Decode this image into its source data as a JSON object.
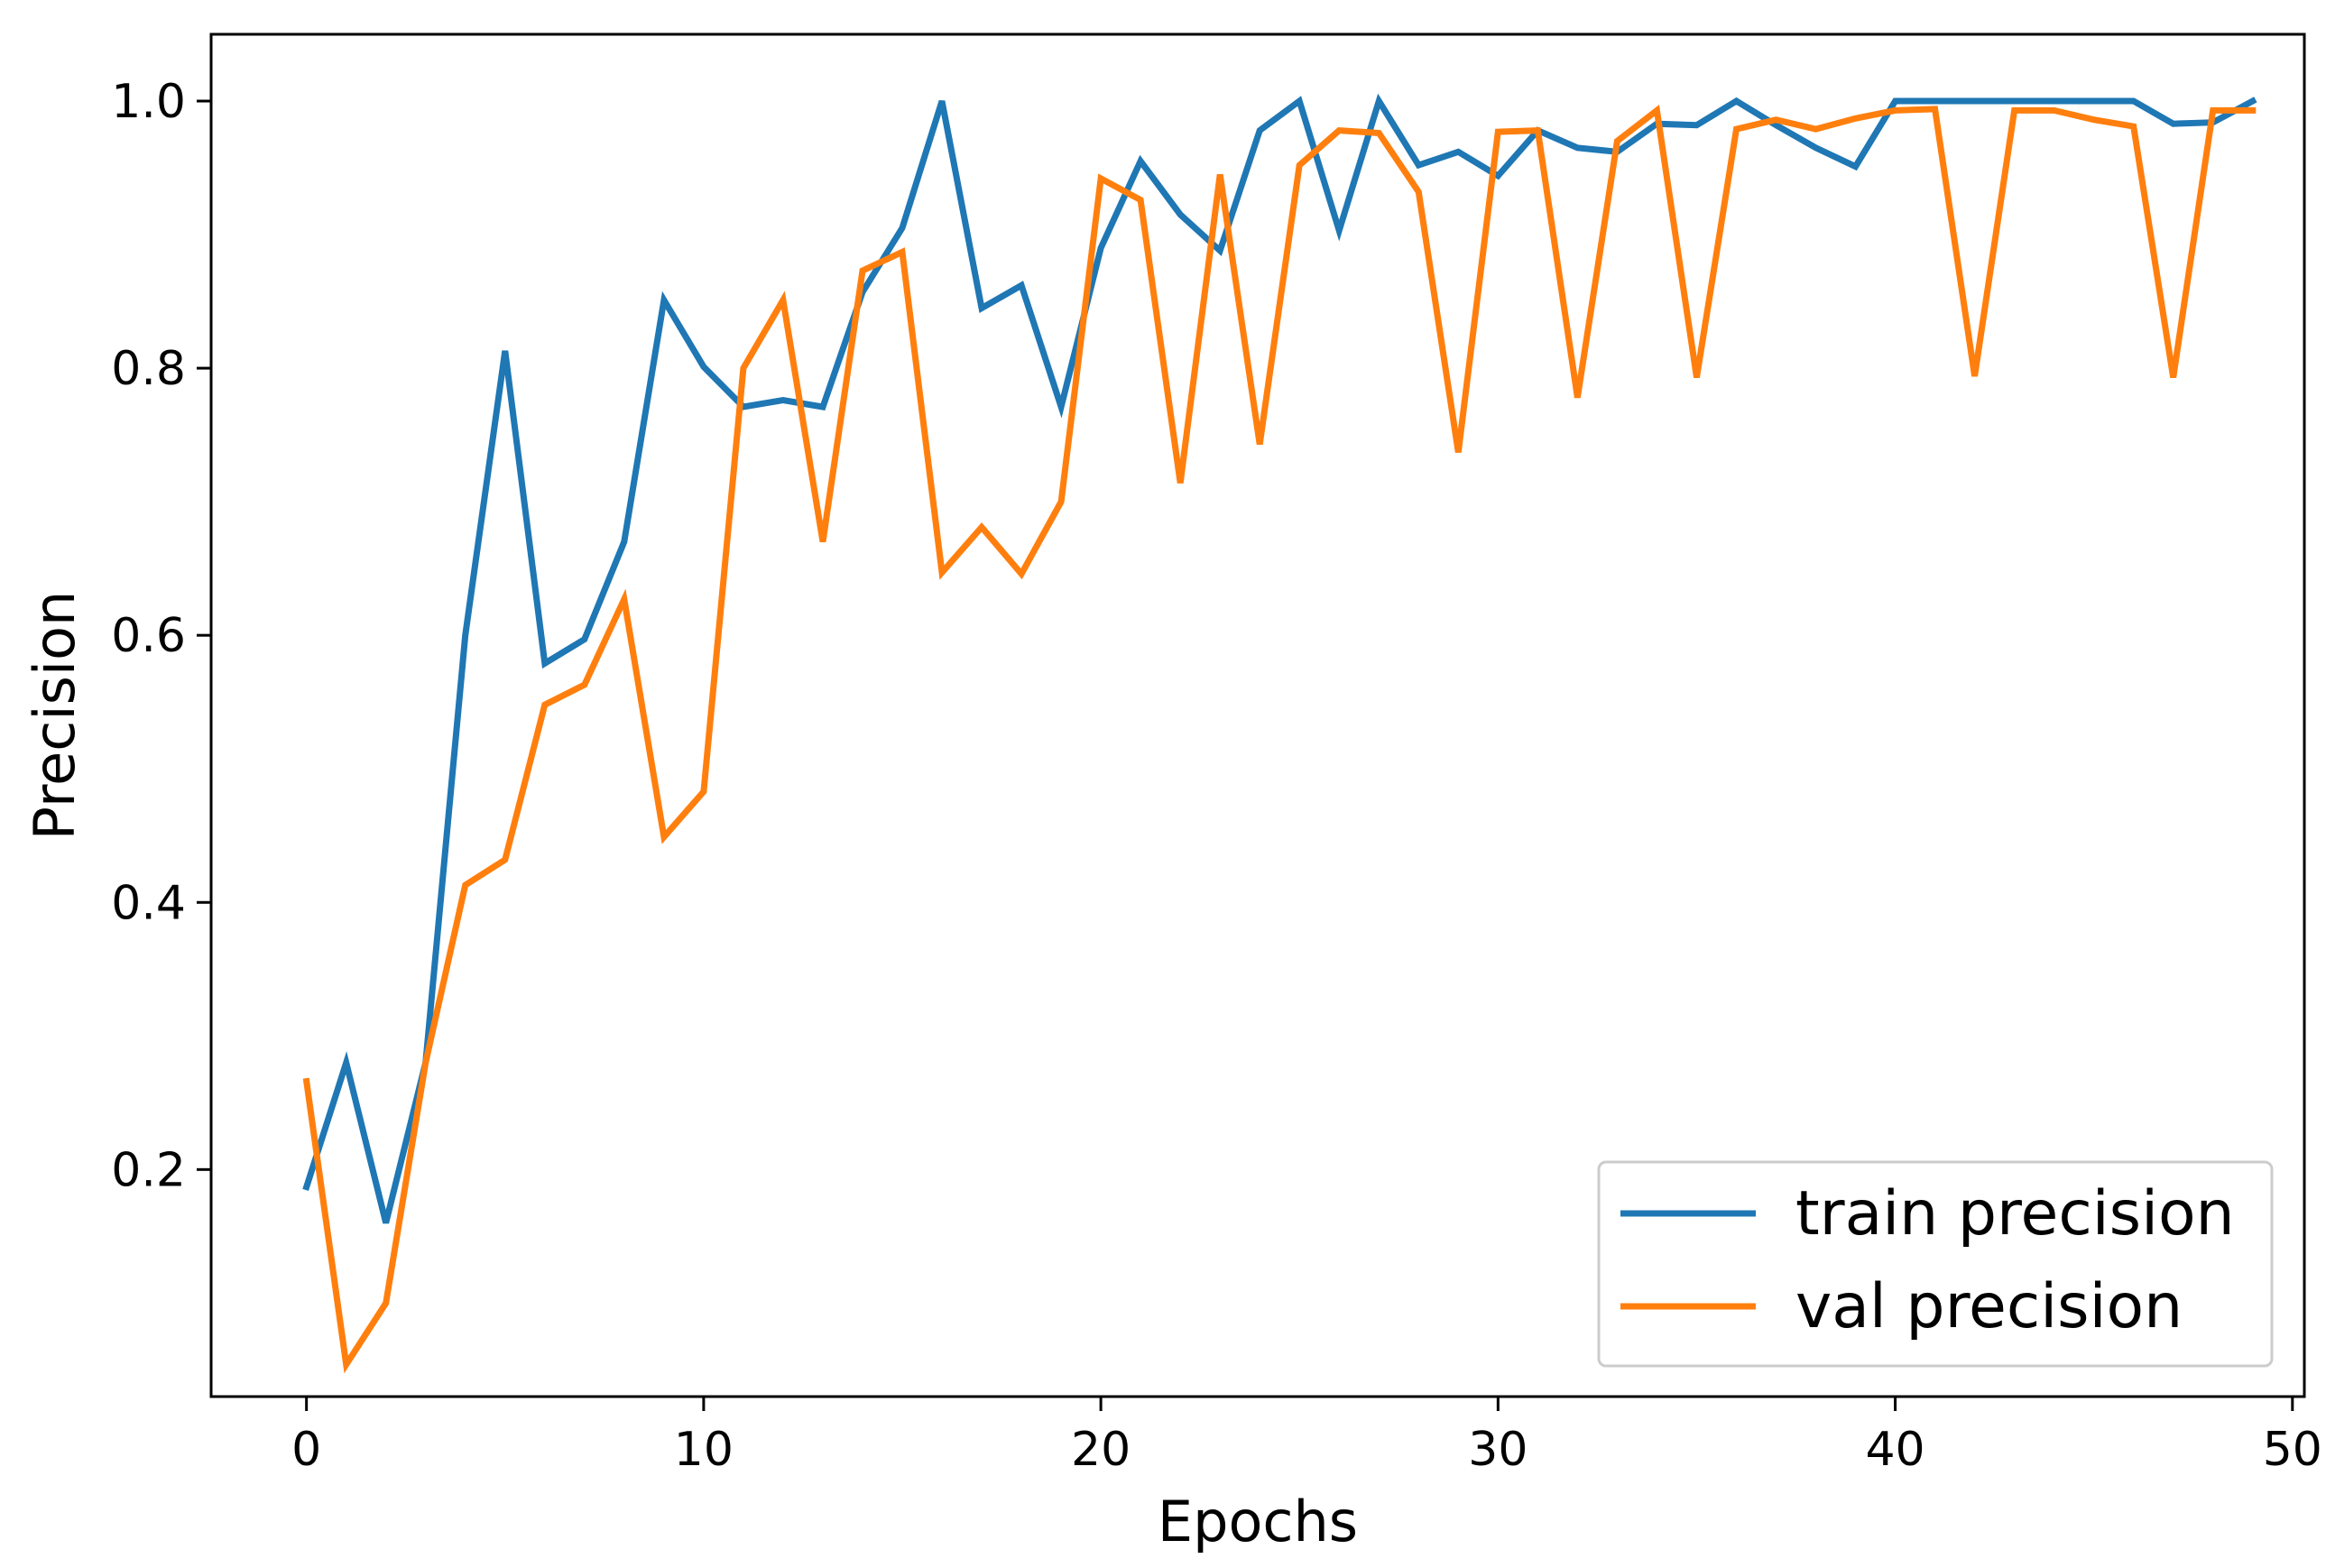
{
  "chart_data": {
    "type": "line",
    "xlabel": "Epochs",
    "ylabel": "Precision",
    "xlim": [
      -2.4,
      50.3
    ],
    "ylim": [
      0.03,
      1.05
    ],
    "x_ticks": [
      0,
      10,
      20,
      30,
      40,
      50
    ],
    "y_ticks": [
      0.2,
      0.4,
      0.6,
      0.8,
      1.0
    ],
    "x_tick_labels": [
      "0",
      "10",
      "20",
      "30",
      "40",
      "50"
    ],
    "y_tick_labels": [
      "0.2",
      "0.4",
      "0.6",
      "0.8",
      "1.0"
    ],
    "grid": false,
    "legend_position": "lower-right",
    "x": [
      0,
      1,
      2,
      3,
      4,
      5,
      6,
      7,
      8,
      9,
      10,
      11,
      12,
      13,
      14,
      15,
      16,
      17,
      18,
      19,
      20,
      21,
      22,
      23,
      24,
      25,
      26,
      27,
      28,
      29,
      30,
      31,
      32,
      33,
      34,
      35,
      36,
      37,
      38,
      39,
      40,
      41,
      42,
      43,
      44,
      45,
      46,
      47,
      48,
      49
    ],
    "series": [
      {
        "name": "train precision",
        "color": "#1f77b4",
        "values": [
          0.187,
          0.28,
          0.16,
          0.28,
          0.6,
          0.813,
          0.579,
          0.597,
          0.67,
          0.851,
          0.801,
          0.771,
          0.776,
          0.771,
          0.857,
          0.905,
          1.0,
          0.845,
          0.862,
          0.771,
          0.89,
          0.955,
          0.915,
          0.888,
          0.978,
          1.0,
          0.903,
          1.0,
          0.952,
          0.962,
          0.944,
          0.978,
          0.965,
          0.962,
          0.983,
          0.982,
          1.0,
          0.982,
          0.965,
          0.951,
          1.0,
          1.0,
          1.0,
          1.0,
          1.0,
          1.0,
          1.0,
          0.983,
          0.984,
          1.0
        ]
      },
      {
        "name": "val precision",
        "color": "#ff7f0e",
        "values": [
          0.266,
          0.054,
          0.1,
          0.28,
          0.413,
          0.432,
          0.548,
          0.563,
          0.627,
          0.449,
          0.483,
          0.8,
          0.851,
          0.67,
          0.873,
          0.887,
          0.647,
          0.681,
          0.646,
          0.7,
          0.942,
          0.926,
          0.714,
          0.945,
          0.743,
          0.952,
          0.978,
          0.976,
          0.932,
          0.737,
          0.977,
          0.978,
          0.778,
          0.97,
          0.993,
          0.793,
          0.979,
          0.986,
          0.979,
          0.987,
          0.993,
          0.994,
          0.794,
          0.993,
          0.993,
          0.986,
          0.981,
          0.793,
          0.993,
          0.993
        ]
      }
    ]
  }
}
